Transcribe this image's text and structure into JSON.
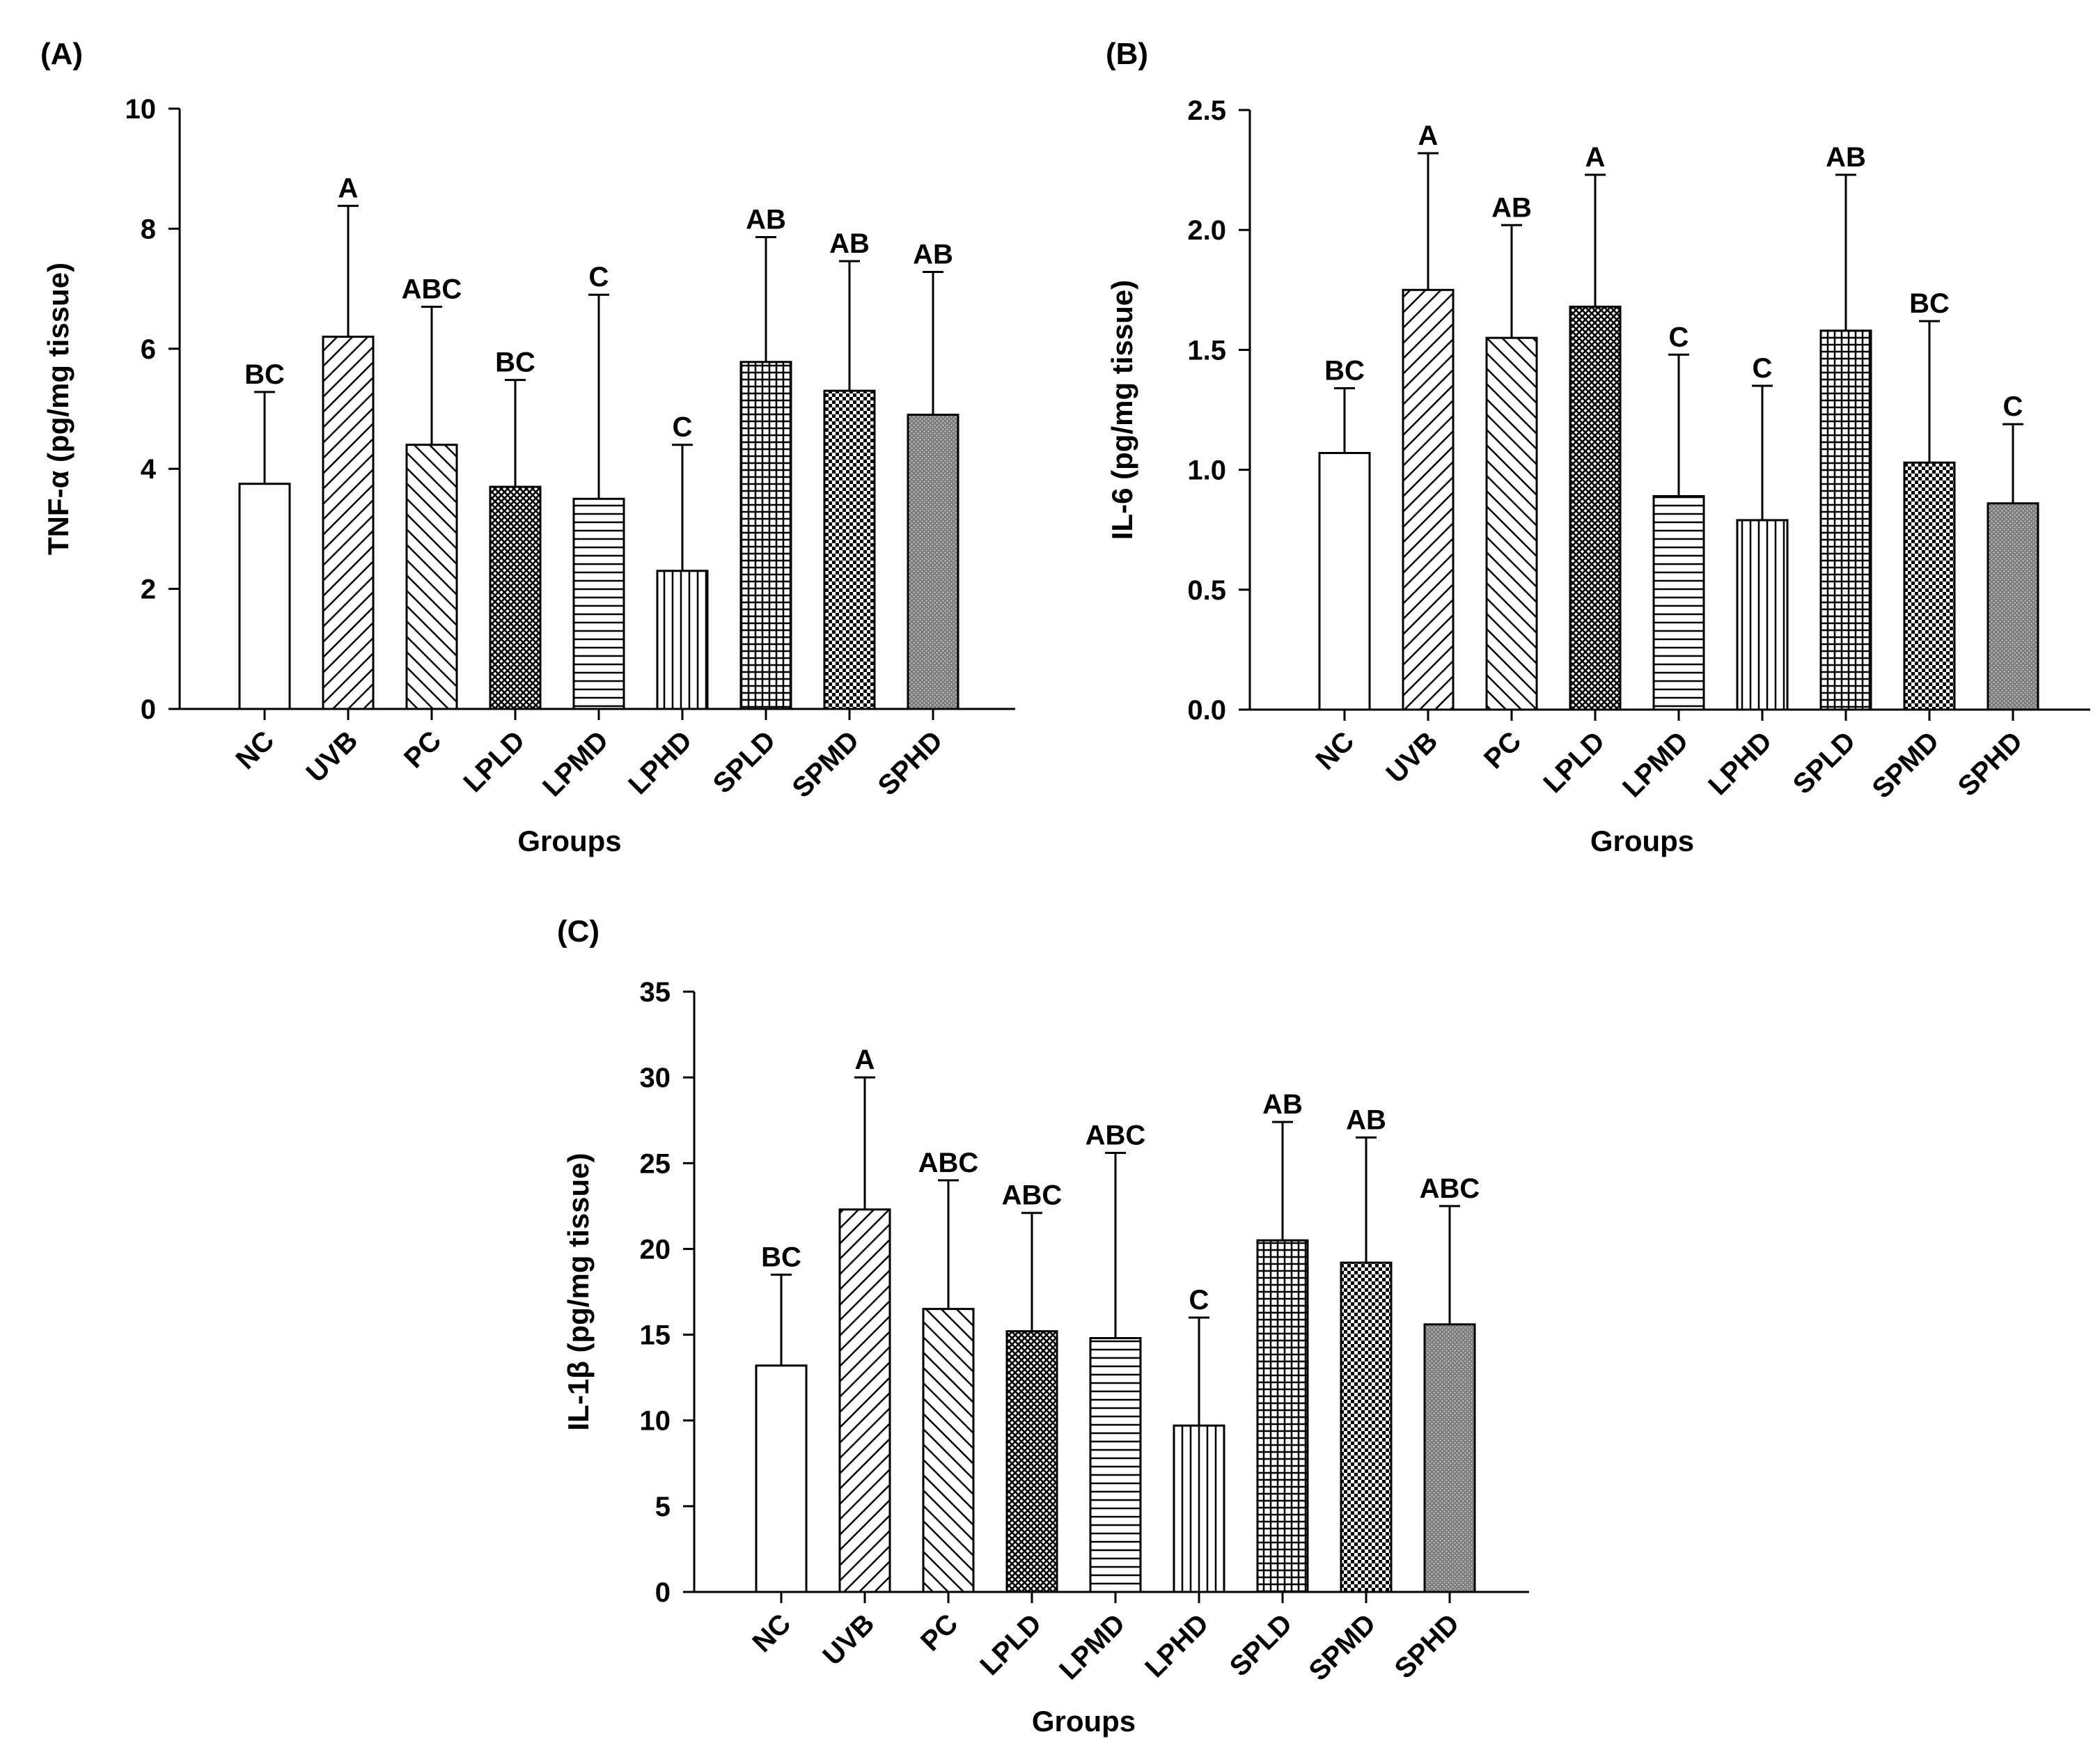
{
  "figure": {
    "panels": [
      {
        "panel_label": "(A)",
        "ylabel": "TNF-α (pg/mg tissue)",
        "xlabel": "Groups"
      },
      {
        "panel_label": "(B)",
        "ylabel": "IL-6 (pg/mg tissue)",
        "xlabel": "Groups"
      },
      {
        "panel_label": "(C)",
        "ylabel": "IL-1β (pg/mg tissue)",
        "xlabel": "Groups"
      }
    ]
  },
  "chart_data": [
    {
      "type": "bar",
      "title": "(A)",
      "xlabel": "Groups",
      "ylabel": "TNF-α (pg/mg tissue)",
      "ylim": [
        0,
        10
      ],
      "yticks": [
        0,
        2,
        4,
        6,
        8,
        10
      ],
      "ytick_labels": [
        "0",
        "2",
        "4",
        "6",
        "8",
        "10"
      ],
      "categories": [
        "NC",
        "UVB",
        "PC",
        "LPLD",
        "LPMD",
        "LPHD",
        "SPLD",
        "SPMD",
        "SPHD"
      ],
      "values": [
        3.75,
        6.2,
        4.4,
        3.7,
        3.5,
        2.3,
        5.78,
        5.3,
        4.9
      ],
      "error_upper": [
        5.28,
        8.38,
        6.7,
        5.48,
        6.9,
        4.4,
        7.86,
        7.46,
        7.28
      ],
      "significance": [
        "BC",
        "A",
        "ABC",
        "BC",
        "C",
        "C",
        "AB",
        "AB",
        "AB"
      ],
      "patterns": [
        "none",
        "diag-up",
        "diag-down",
        "dense-cross",
        "horizontal",
        "vertical",
        "grid",
        "checker",
        "dots"
      ]
    },
    {
      "type": "bar",
      "title": "(B)",
      "xlabel": "Groups",
      "ylabel": "IL-6 (pg/mg tissue)",
      "ylim": [
        0,
        2.5
      ],
      "yticks": [
        0,
        0.5,
        1.0,
        1.5,
        2.0,
        2.5
      ],
      "ytick_labels": [
        "0.0",
        "0.5",
        "1.0",
        "1.5",
        "2.0",
        "2.5"
      ],
      "categories": [
        "NC",
        "UVB",
        "PC",
        "LPLD",
        "LPMD",
        "LPHD",
        "SPLD",
        "SPMD",
        "SPHD"
      ],
      "values": [
        1.07,
        1.75,
        1.55,
        1.68,
        0.89,
        0.79,
        1.58,
        1.03,
        0.86
      ],
      "error_upper": [
        1.34,
        2.32,
        2.02,
        2.23,
        1.48,
        1.35,
        2.23,
        1.62,
        1.19
      ],
      "significance": [
        "BC",
        "A",
        "AB",
        "A",
        "C",
        "C",
        "AB",
        "BC",
        "C"
      ],
      "patterns": [
        "none",
        "diag-up",
        "diag-down",
        "dense-cross",
        "horizontal",
        "vertical",
        "grid",
        "checker",
        "dots"
      ]
    },
    {
      "type": "bar",
      "title": "(C)",
      "xlabel": "Groups",
      "ylabel": "IL-1β (pg/mg tissue)",
      "ylim": [
        0,
        35
      ],
      "yticks": [
        0,
        5,
        10,
        15,
        20,
        25,
        30,
        35
      ],
      "ytick_labels": [
        "0",
        "5",
        "10",
        "15",
        "20",
        "25",
        "30",
        "35"
      ],
      "categories": [
        "NC",
        "UVB",
        "PC",
        "LPLD",
        "LPMD",
        "LPHD",
        "SPLD",
        "SPMD",
        "SPHD"
      ],
      "values": [
        13.2,
        22.3,
        16.5,
        15.2,
        14.8,
        9.7,
        20.5,
        19.2,
        15.6
      ],
      "error_upper": [
        18.5,
        30.0,
        24.0,
        22.1,
        25.6,
        16.0,
        27.4,
        26.5,
        22.5
      ],
      "significance": [
        "BC",
        "A",
        "ABC",
        "ABC",
        "ABC",
        "C",
        "AB",
        "AB",
        "ABC"
      ],
      "patterns": [
        "none",
        "diag-up",
        "diag-down",
        "dense-cross",
        "horizontal",
        "vertical",
        "grid",
        "checker",
        "dots"
      ]
    }
  ]
}
